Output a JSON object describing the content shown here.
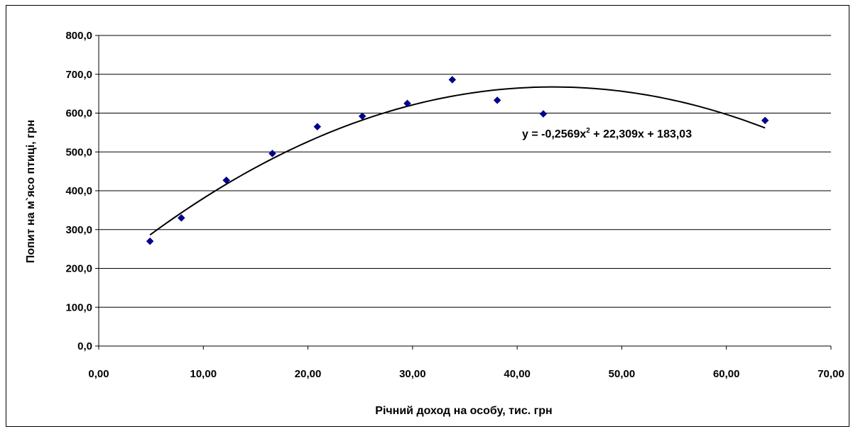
{
  "chart_data": {
    "type": "scatter",
    "xlabel": "Річний доход на особу, тис. грн",
    "ylabel": "Попит на м`ясо птиці, грн",
    "xlim": [
      0,
      70
    ],
    "ylim": [
      0,
      800
    ],
    "x_ticks": [
      "0,00",
      "10,00",
      "20,00",
      "30,00",
      "40,00",
      "50,00",
      "60,00",
      "70,00"
    ],
    "y_ticks": [
      "0,0",
      "100,0",
      "200,0",
      "300,0",
      "400,0",
      "500,0",
      "600,0",
      "700,0",
      "800,0"
    ],
    "grid": "horizontal",
    "marker_color": "#00008B",
    "trendline_color": "#000000",
    "points": [
      {
        "x": 4.9,
        "y": 270
      },
      {
        "x": 7.9,
        "y": 330
      },
      {
        "x": 12.2,
        "y": 427
      },
      {
        "x": 16.6,
        "y": 496
      },
      {
        "x": 20.9,
        "y": 565
      },
      {
        "x": 25.2,
        "y": 592
      },
      {
        "x": 29.5,
        "y": 625
      },
      {
        "x": 33.8,
        "y": 686
      },
      {
        "x": 38.1,
        "y": 633
      },
      {
        "x": 42.5,
        "y": 598
      },
      {
        "x": 63.7,
        "y": 581
      }
    ],
    "trendline": {
      "type": "polynomial",
      "coefficients": [
        -0.2569,
        22.309,
        183.03
      ],
      "x_range": [
        4.9,
        63.7
      ],
      "equation": {
        "lead": "y = -0,2569x",
        "power": "2",
        "tail": " + 22,309x + 183,03"
      }
    }
  }
}
